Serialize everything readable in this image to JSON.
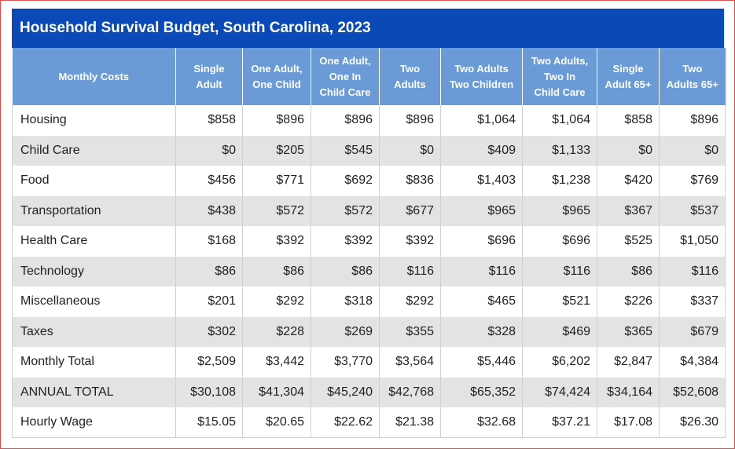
{
  "title": "Household Survival Budget, South Carolina, 2023",
  "table": {
    "headers": [
      [
        "Monthly Costs"
      ],
      [
        "Single",
        "Adult"
      ],
      [
        "One Adult,",
        "One Child"
      ],
      [
        "One Adult,",
        "One In",
        "Child Care"
      ],
      [
        "Two",
        "Adults"
      ],
      [
        "Two Adults",
        "Two Children"
      ],
      [
        "Two Adults,",
        "Two In",
        "Child Care"
      ],
      [
        "Single",
        "Adult 65+"
      ],
      [
        "Two",
        "Adults 65+"
      ]
    ],
    "rows": [
      [
        "Housing",
        "$858",
        "$896",
        "$896",
        "$896",
        "$1,064",
        "$1,064",
        "$858",
        "$896"
      ],
      [
        "Child Care",
        "$0",
        "$205",
        "$545",
        "$0",
        "$409",
        "$1,133",
        "$0",
        "$0"
      ],
      [
        "Food",
        "$456",
        "$771",
        "$692",
        "$836",
        "$1,403",
        "$1,238",
        "$420",
        "$769"
      ],
      [
        "Transportation",
        "$438",
        "$572",
        "$572",
        "$677",
        "$965",
        "$965",
        "$367",
        "$537"
      ],
      [
        "Health Care",
        "$168",
        "$392",
        "$392",
        "$392",
        "$696",
        "$696",
        "$525",
        "$1,050"
      ],
      [
        "Technology",
        "$86",
        "$86",
        "$86",
        "$116",
        "$116",
        "$116",
        "$86",
        "$116"
      ],
      [
        "Miscellaneous",
        "$201",
        "$292",
        "$318",
        "$292",
        "$465",
        "$521",
        "$226",
        "$337"
      ],
      [
        "Taxes",
        "$302",
        "$228",
        "$269",
        "$355",
        "$328",
        "$469",
        "$365",
        "$679"
      ],
      [
        "Monthly Total",
        "$2,509",
        "$3,442",
        "$3,770",
        "$3,564",
        "$5,446",
        "$6,202",
        "$2,847",
        "$4,384"
      ],
      [
        "ANNUAL TOTAL",
        "$30,108",
        "$41,304",
        "$45,240",
        "$42,768",
        "$65,352",
        "$74,424",
        "$34,164",
        "$52,608"
      ],
      [
        "Hourly Wage",
        "$15.05",
        "$20.65",
        "$22.62",
        "$21.38",
        "$32.68",
        "$37.21",
        "$17.08",
        "$26.30"
      ]
    ]
  },
  "colors": {
    "title_bg": "#0a49b8",
    "header_bg": "#6a9bd6",
    "stripe_bg": "#e3e3e3",
    "frame_border": "#e05050"
  }
}
